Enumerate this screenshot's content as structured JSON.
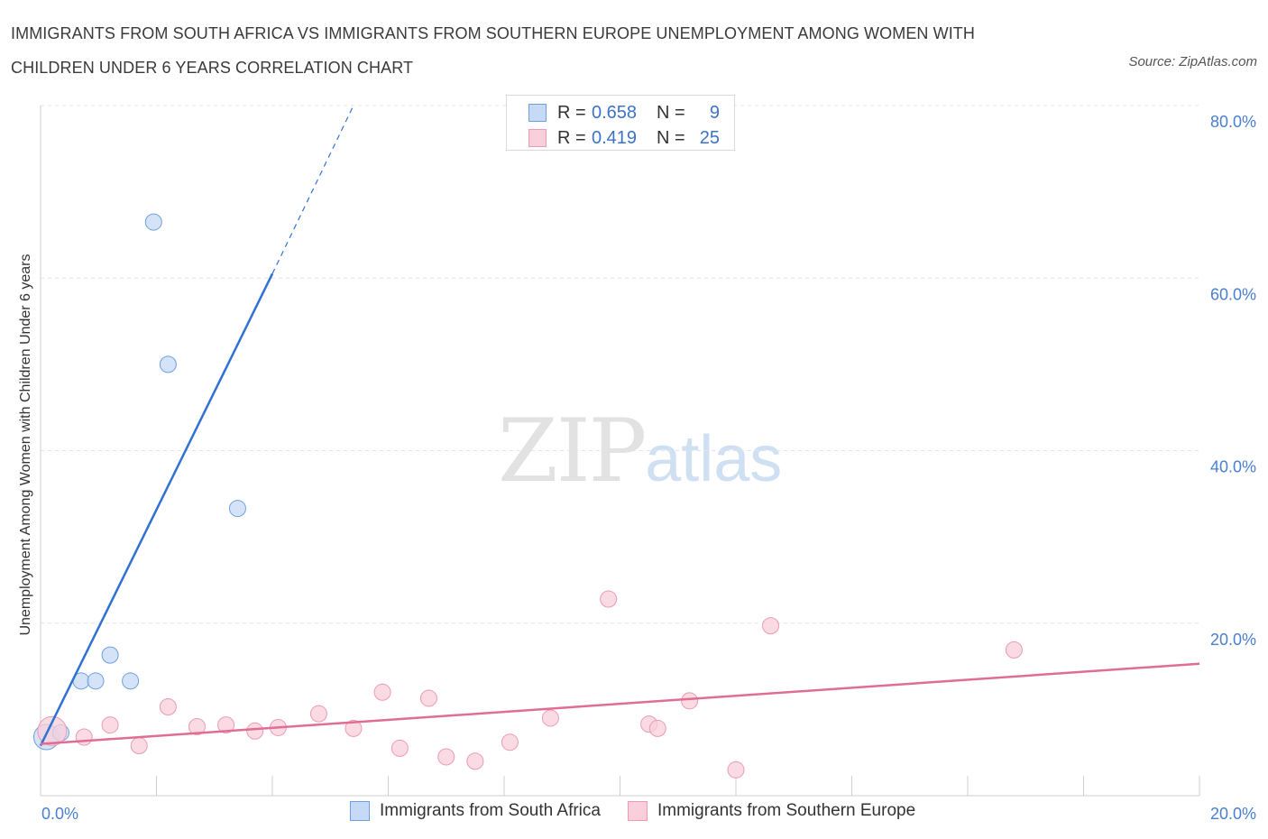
{
  "title": "IMMIGRANTS FROM SOUTH AFRICA VS IMMIGRANTS FROM SOUTHERN EUROPE UNEMPLOYMENT AMONG WOMEN WITH CHILDREN UNDER 6 YEARS CORRELATION CHART",
  "source": "Source: ZipAtlas.com",
  "watermark": {
    "zip": "ZIP",
    "atlas": "atlas"
  },
  "legend": {
    "series1": {
      "r_label": "R =",
      "r_value": "0.658",
      "n_label": "N =",
      "n_value": "9"
    },
    "series2": {
      "r_label": "R =",
      "r_value": "0.419",
      "n_label": "N =",
      "n_value": "25"
    }
  },
  "chart_data": {
    "type": "scatter",
    "title": "IMMIGRANTS FROM SOUTH AFRICA VS IMMIGRANTS FROM SOUTHERN EUROPE UNEMPLOYMENT AMONG WOMEN WITH CHILDREN UNDER 6 YEARS CORRELATION CHART",
    "xlabel": "",
    "ylabel": "Unemployment Among Women with Children Under 6 years",
    "xlim": [
      0,
      20
    ],
    "ylim": [
      0,
      80
    ],
    "x_tick_labels": [
      "0.0%",
      "20.0%"
    ],
    "y_ticks": [
      20,
      40,
      60,
      80
    ],
    "y_tick_labels": [
      "20.0%",
      "40.0%",
      "60.0%",
      "80.0%"
    ],
    "grid": true,
    "legend_position": "top-center",
    "series": [
      {
        "name": "Immigrants from South Africa",
        "color": "#6f9fe0",
        "fill": "#c6d9f5",
        "line_color": "#2f72d3",
        "x": [
          0.1,
          0.35,
          0.7,
          0.95,
          1.2,
          1.55,
          1.95,
          2.2,
          3.4
        ],
        "y": [
          6.8,
          7.3,
          13.3,
          13.3,
          16.3,
          13.3,
          66.5,
          50.0,
          33.3
        ],
        "sizes": [
          14,
          9,
          9,
          9,
          9,
          9,
          9,
          9,
          9
        ],
        "trend": {
          "x0": 0.0,
          "y0": 5.8,
          "x1": 4.0,
          "y1": 60.5,
          "dashed_to_x": 5.4,
          "dashed_to_y": 80.0
        }
      },
      {
        "name": "Immigrants from Southern Europe",
        "color": "#ec9ab4",
        "fill": "#f8cfdb",
        "line_color": "#e06d93",
        "x": [
          0.2,
          0.75,
          1.2,
          1.7,
          2.2,
          2.7,
          3.2,
          3.7,
          4.1,
          4.8,
          5.4,
          5.9,
          6.2,
          6.7,
          7.0,
          7.5,
          8.1,
          8.8,
          9.8,
          10.5,
          10.65,
          11.2,
          12.0,
          12.6,
          16.8
        ],
        "y": [
          7.5,
          6.8,
          8.2,
          5.8,
          10.3,
          8.0,
          8.2,
          7.5,
          7.9,
          9.5,
          7.8,
          12.0,
          5.5,
          11.3,
          4.5,
          4.0,
          6.2,
          9.0,
          22.8,
          8.3,
          7.8,
          11.0,
          3.0,
          19.7,
          16.9
        ],
        "sizes": [
          16,
          9,
          9,
          9,
          9,
          9,
          9,
          9,
          9,
          9,
          9,
          9,
          9,
          9,
          9,
          9,
          9,
          9,
          9,
          9,
          9,
          9,
          9,
          9,
          9
        ],
        "trend": {
          "x0": 0.0,
          "y0": 6.0,
          "x1": 20.0,
          "y1": 15.3
        }
      }
    ]
  }
}
